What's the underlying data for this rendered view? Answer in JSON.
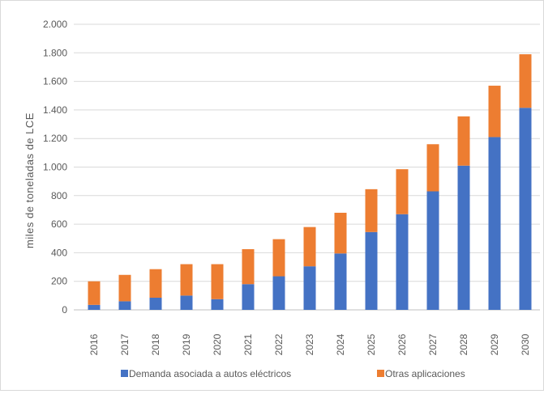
{
  "chart_data": {
    "type": "bar",
    "stacked": true,
    "title": "",
    "xlabel": "",
    "ylabel": "miles de toneladas de  LCE",
    "ylim": [
      0,
      2000
    ],
    "yticks": [
      0,
      200,
      400,
      600,
      800,
      1000,
      1200,
      1400,
      1600,
      1800,
      2000
    ],
    "ytick_labels": [
      "0",
      "200",
      "400",
      "600",
      "800",
      "1.000",
      "1.200",
      "1.400",
      "1.600",
      "1.800",
      "2.000"
    ],
    "grid": true,
    "legend_position": "bottom",
    "categories": [
      "2016",
      "2017",
      "2018",
      "2019",
      "2020",
      "2021",
      "2022",
      "2023",
      "2024",
      "2025",
      "2026",
      "2027",
      "2028",
      "2029",
      "2030"
    ],
    "series": [
      {
        "name": "Demanda asociada a autos eléctricos",
        "color": "#4472c4",
        "values": [
          35,
          60,
          85,
          100,
          75,
          180,
          235,
          305,
          395,
          545,
          670,
          830,
          1010,
          1210,
          1415
        ]
      },
      {
        "name": "Otras aplicaciones",
        "color": "#ed7d31",
        "values": [
          165,
          185,
          200,
          220,
          245,
          245,
          260,
          275,
          285,
          300,
          315,
          330,
          345,
          360,
          375
        ]
      }
    ]
  }
}
